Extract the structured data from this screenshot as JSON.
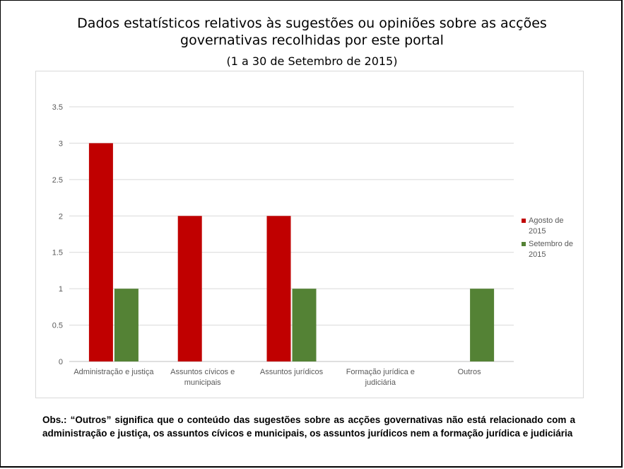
{
  "title_line1": "Dados estatísticos relativos às sugestões ou opiniões sobre as acções",
  "title_line2": "governativas recolhidas por este portal",
  "subtitle": "(1 a 30 de Setembro de 2015)",
  "note": "Obs.: “Outros” significa que o conteúdo das sugestões sobre as acções governativas não está relacionado com a administração e justiça, os assuntos cívicos e municipais, os assuntos jurídicos nem a formação jurídica e judiciária",
  "chart_data": {
    "type": "bar",
    "categories": [
      [
        "Administração e justiça"
      ],
      [
        "Assuntos cívicos e",
        "municipais"
      ],
      [
        "Assuntos jurídicos"
      ],
      [
        "Formação jurídica e",
        "judiciária"
      ],
      [
        "Outros"
      ]
    ],
    "series": [
      {
        "name": [
          "Agosto de",
          "2015"
        ],
        "color": "#c00000",
        "values": [
          3,
          2,
          2,
          0,
          0
        ]
      },
      {
        "name": [
          "Setembro de",
          "2015"
        ],
        "color": "#548235",
        "values": [
          1,
          0,
          1,
          0,
          1
        ]
      }
    ],
    "yticks": [
      "0",
      "0.5",
      "1",
      "1.5",
      "2",
      "2.5",
      "3",
      "3.5"
    ],
    "ylim": [
      0,
      3.5
    ],
    "legend_position": "right"
  }
}
